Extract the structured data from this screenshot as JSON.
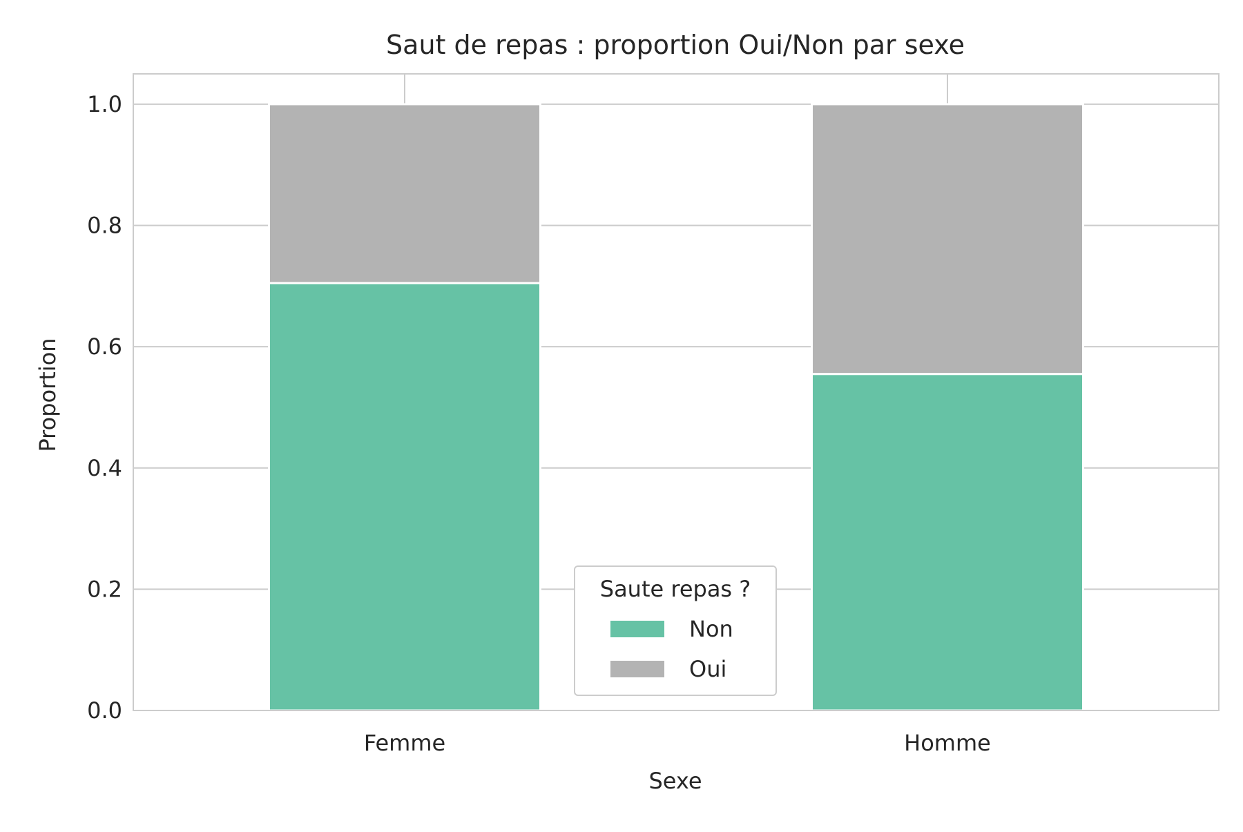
{
  "chart_data": {
    "type": "bar",
    "stacked": true,
    "title": "Saut de repas : proportion Oui/Non par sexe",
    "xlabel": "Sexe",
    "ylabel": "Proportion",
    "categories": [
      "Femme",
      "Homme"
    ],
    "ylim": [
      0,
      1.05
    ],
    "yticks": [
      "0.0",
      "0.2",
      "0.4",
      "0.6",
      "0.8",
      "1.0"
    ],
    "grid": true,
    "legend": {
      "title": "Saute repas ?",
      "placement": "bottom-center"
    },
    "series": [
      {
        "name": "Non",
        "values": [
          0.705,
          0.555
        ],
        "color": "#66c2a5"
      },
      {
        "name": "Oui",
        "values": [
          0.295,
          0.445
        ],
        "color": "#b3b3b3"
      }
    ]
  }
}
